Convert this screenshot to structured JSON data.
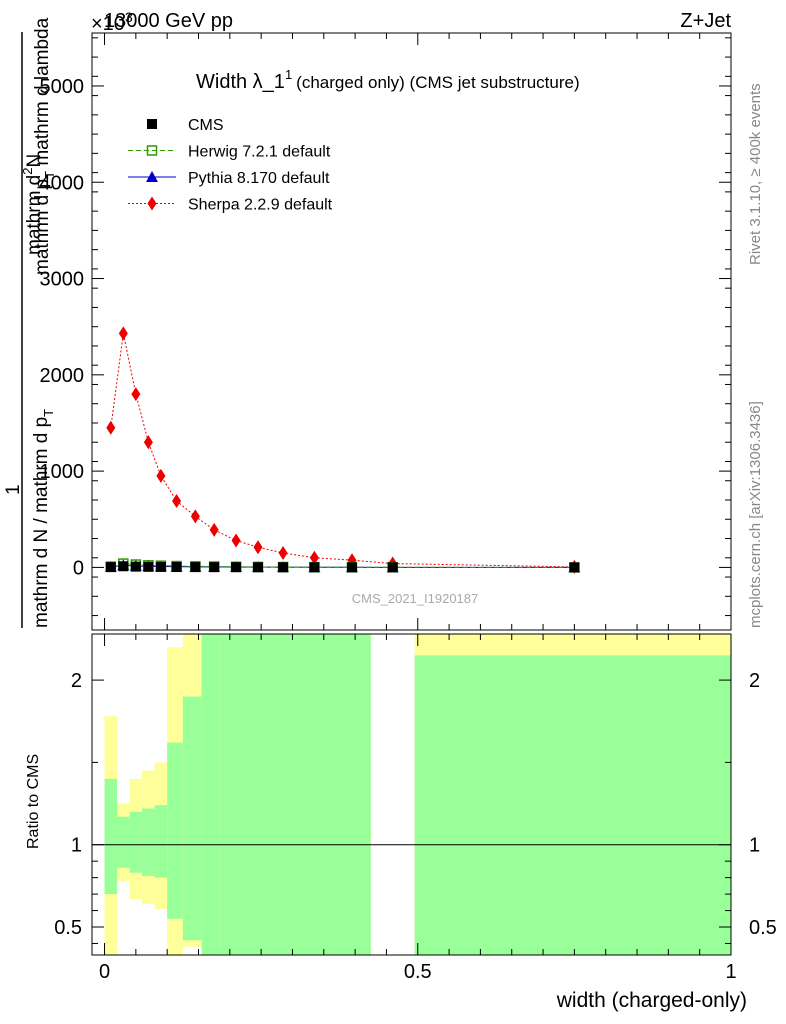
{
  "header": {
    "energy": "13000 GeV pp",
    "process": "Z+Jet",
    "multiplier": "×10",
    "multiplier_exp": "3"
  },
  "plot_title": {
    "main": "Width λ_1",
    "sup": "1",
    "suffix": "(charged only) (CMS jet substructure)"
  },
  "y_title": {
    "line1": "mathrm d",
    "line1_sup": "2",
    "line1_b": "N",
    "line2a": "mathrm d p",
    "line2a_sub": "T",
    "line2b": " mathrm d lambda",
    "line3": "1",
    "line4a": "mathrm d N / mathrm d p",
    "line4a_sub": "T"
  },
  "side_labels": {
    "rivet": "Rivet 3.1.10, ≥ 400k events",
    "mcplots": "mcplots.cern.ch [arXiv:1306.3436]"
  },
  "watermark": "CMS_2021_I1920187",
  "ratio_ylabel": "Ratio to CMS",
  "xlabel": "width (charged-only)",
  "legend": [
    {
      "name": "CMS",
      "color": "#000000",
      "marker": "square"
    },
    {
      "name": "Herwig 7.2.1 default",
      "color": "#339900",
      "marker": "open-square",
      "dash": "dashed"
    },
    {
      "name": "Pythia 8.170 default",
      "color": "#0000cc",
      "marker": "triangle",
      "dash": "solid"
    },
    {
      "name": "Sherpa 2.2.9 default",
      "color": "#ee0000",
      "marker": "diamond",
      "dash": "dotted"
    }
  ],
  "chart_data": {
    "type": "line",
    "title": "Width λ_1^1 (charged only) (CMS jet substructure)",
    "xlabel": "width (charged-only)",
    "ylabel": "1 / mathrm d N / mathrm d p_T  mathrm d^2 N / mathrm d p_T mathrm d lambda",
    "xlim": [
      -0.02,
      1.0
    ],
    "ylim": [
      -650,
      5550
    ],
    "y_scale_note": "×10^3",
    "x_ticks": [
      0,
      0.5,
      1
    ],
    "x_tick_labels": [
      "0",
      "0.5",
      "1"
    ],
    "y_ticks": [
      0,
      1000,
      2000,
      3000,
      4000,
      5000
    ],
    "y_tick_labels": [
      "0",
      "1000",
      "2000",
      "3000",
      "4000",
      "5000"
    ],
    "x": [
      0.01,
      0.03,
      0.05,
      0.07,
      0.09,
      0.115,
      0.145,
      0.175,
      0.21,
      0.245,
      0.285,
      0.335,
      0.395,
      0.46,
      0.75
    ],
    "series": [
      {
        "name": "CMS",
        "values": [
          3,
          12,
          8,
          6,
          5,
          4,
          3,
          2.5,
          2,
          1.6,
          1.2,
          0.8,
          0.5,
          0.3,
          0.05
        ]
      },
      {
        "name": "Herwig 7.2.1 default",
        "values": [
          8,
          40,
          30,
          22,
          18,
          14,
          11,
          9,
          7,
          5,
          4,
          3,
          2,
          1.5,
          0.2
        ]
      },
      {
        "name": "Pythia 8.170 default",
        "values": [
          5,
          22,
          16,
          12,
          10,
          8,
          6,
          5,
          4,
          3,
          2.5,
          1.8,
          1.2,
          0.8,
          0.1
        ]
      },
      {
        "name": "Sherpa 2.2.9 default",
        "values": [
          1450,
          2430,
          1800,
          1300,
          950,
          690,
          530,
          390,
          280,
          210,
          150,
          100,
          75,
          40,
          5
        ]
      }
    ],
    "ratio": {
      "ylabel": "Ratio to CMS",
      "ylim": [
        0.33,
        2.28
      ],
      "y_ticks": [
        0.5,
        1,
        2
      ],
      "y_tick_labels": [
        "0.5",
        "1",
        "2"
      ],
      "reference": 1,
      "bands": [
        {
          "x0": 0.0,
          "x1": 0.02,
          "green_lo": 0.7,
          "green_hi": 1.4,
          "yellow_lo": 0.33,
          "yellow_hi": 1.78
        },
        {
          "x0": 0.02,
          "x1": 0.04,
          "green_lo": 0.86,
          "green_hi": 1.17,
          "yellow_lo": 0.78,
          "yellow_hi": 1.25
        },
        {
          "x0": 0.04,
          "x1": 0.06,
          "green_lo": 0.83,
          "green_hi": 1.2,
          "yellow_lo": 0.67,
          "yellow_hi": 1.4
        },
        {
          "x0": 0.06,
          "x1": 0.08,
          "green_lo": 0.81,
          "green_hi": 1.22,
          "yellow_lo": 0.64,
          "yellow_hi": 1.45
        },
        {
          "x0": 0.08,
          "x1": 0.1,
          "green_lo": 0.8,
          "green_hi": 1.24,
          "yellow_lo": 0.61,
          "yellow_hi": 1.5
        },
        {
          "x0": 0.1,
          "x1": 0.125,
          "green_lo": 0.55,
          "green_hi": 1.62,
          "yellow_lo": 0.33,
          "yellow_hi": 2.2
        },
        {
          "x0": 0.125,
          "x1": 0.155,
          "green_lo": 0.42,
          "green_hi": 1.9,
          "yellow_lo": 0.38,
          "yellow_hi": 2.28
        },
        {
          "x0": 0.155,
          "x1": 0.185,
          "green_lo": 0.33,
          "green_hi": 2.28,
          "yellow_lo": 0.33,
          "yellow_hi": 2.28
        },
        {
          "x0": 0.185,
          "x1": 0.425,
          "green_lo": 0.33,
          "green_hi": 2.28,
          "yellow_lo": 0.33,
          "yellow_hi": 2.28
        },
        {
          "x0": 0.495,
          "x1": 1.0,
          "green_lo": 0.33,
          "green_hi": 2.15,
          "yellow_lo": 0.33,
          "yellow_hi": 2.28
        }
      ]
    }
  }
}
